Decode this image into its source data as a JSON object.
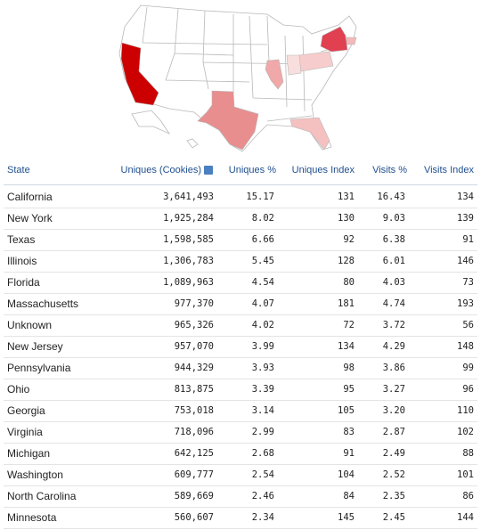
{
  "table": {
    "headers": [
      "State",
      "Uniques (Cookies)",
      "Uniques %",
      "Uniques Index",
      "Visits %",
      "Visits Index"
    ],
    "rows": [
      [
        "California",
        "3,641,493",
        "15.17",
        "131",
        "16.43",
        "134"
      ],
      [
        "New York",
        "1,925,284",
        "8.02",
        "130",
        "9.03",
        "139"
      ],
      [
        "Texas",
        "1,598,585",
        "6.66",
        "92",
        "6.38",
        "91"
      ],
      [
        "Illinois",
        "1,306,783",
        "5.45",
        "128",
        "6.01",
        "146"
      ],
      [
        "Florida",
        "1,089,963",
        "4.54",
        "80",
        "4.03",
        "73"
      ],
      [
        "Massachusetts",
        "977,370",
        "4.07",
        "181",
        "4.74",
        "193"
      ],
      [
        "Unknown",
        "965,326",
        "4.02",
        "72",
        "3.72",
        "56"
      ],
      [
        "New Jersey",
        "957,070",
        "3.99",
        "134",
        "4.29",
        "148"
      ],
      [
        "Pennsylvania",
        "944,329",
        "3.93",
        "98",
        "3.86",
        "99"
      ],
      [
        "Ohio",
        "813,875",
        "3.39",
        "95",
        "3.27",
        "96"
      ],
      [
        "Georgia",
        "753,018",
        "3.14",
        "105",
        "3.20",
        "110"
      ],
      [
        "Virginia",
        "718,096",
        "2.99",
        "83",
        "2.87",
        "102"
      ],
      [
        "Michigan",
        "642,125",
        "2.68",
        "91",
        "2.49",
        "88"
      ],
      [
        "Washington",
        "609,777",
        "2.54",
        "104",
        "2.52",
        "101"
      ],
      [
        "North Carolina",
        "589,669",
        "2.46",
        "84",
        "2.35",
        "86"
      ],
      [
        "Minnesota",
        "560,607",
        "2.34",
        "145",
        "2.45",
        "144"
      ]
    ]
  }
}
